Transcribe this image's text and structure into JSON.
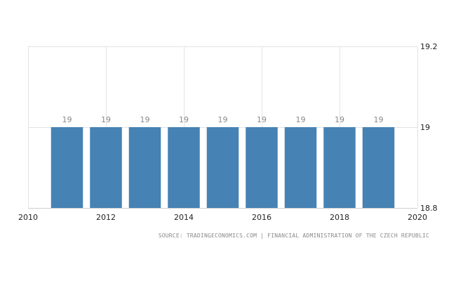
{
  "chart_data": {
    "type": "bar",
    "x": [
      2011,
      2012,
      2013,
      2014,
      2015,
      2016,
      2017,
      2018,
      2019
    ],
    "values": [
      19,
      19,
      19,
      19,
      19,
      19,
      19,
      19,
      19
    ],
    "data_labels": [
      "19",
      "19",
      "19",
      "19",
      "19",
      "19",
      "19",
      "19",
      "19"
    ],
    "xlim": [
      2010,
      2020
    ],
    "ylim": [
      18.8,
      19.2
    ],
    "x_ticks": [
      2010,
      2012,
      2014,
      2016,
      2018,
      2020
    ],
    "x_tick_labels": [
      "2010",
      "2012",
      "2014",
      "2016",
      "2018",
      "2020"
    ],
    "y_ticks": [
      18.8,
      19,
      19.2
    ],
    "y_tick_labels": [
      "18.8",
      "19",
      "19.2"
    ],
    "y_axis_side": "right",
    "grid": true,
    "bar_color": "#4682b4",
    "title": "",
    "xlabel": "",
    "ylabel": ""
  },
  "source": "SOURCE: TRADINGECONOMICS.COM | FINANCIAL ADMINISTRATION OF THE CZECH REPUBLIC"
}
